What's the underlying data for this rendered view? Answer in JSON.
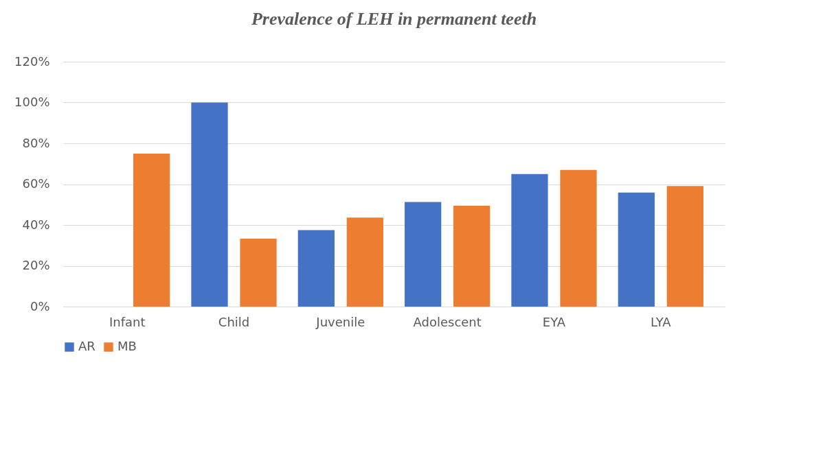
{
  "chart_data": {
    "type": "bar",
    "title": "Prevalence of LEH in permanent teeth",
    "categories": [
      "Infant",
      "Child",
      "Juvenile",
      "Adolescent",
      "EYA",
      "LYA"
    ],
    "series": [
      {
        "name": "AR",
        "color": "#4472c4",
        "values": [
          0,
          100,
          37.5,
          51.3,
          65,
          55.9
        ]
      },
      {
        "name": "MB",
        "color": "#ed7d31",
        "values": [
          75,
          33.3,
          43.6,
          49.4,
          67,
          59.1
        ]
      }
    ],
    "ylim": [
      0,
      120
    ],
    "yticks": [
      {
        "value": 0,
        "label": "0%"
      },
      {
        "value": 20,
        "label": "20%"
      },
      {
        "value": 40,
        "label": "40%"
      },
      {
        "value": 60,
        "label": "60%"
      },
      {
        "value": 80,
        "label": "80%"
      },
      {
        "value": 100,
        "label": "100%"
      },
      {
        "value": 120,
        "label": "120%"
      }
    ],
    "grid": "y",
    "legend": "bottom"
  }
}
